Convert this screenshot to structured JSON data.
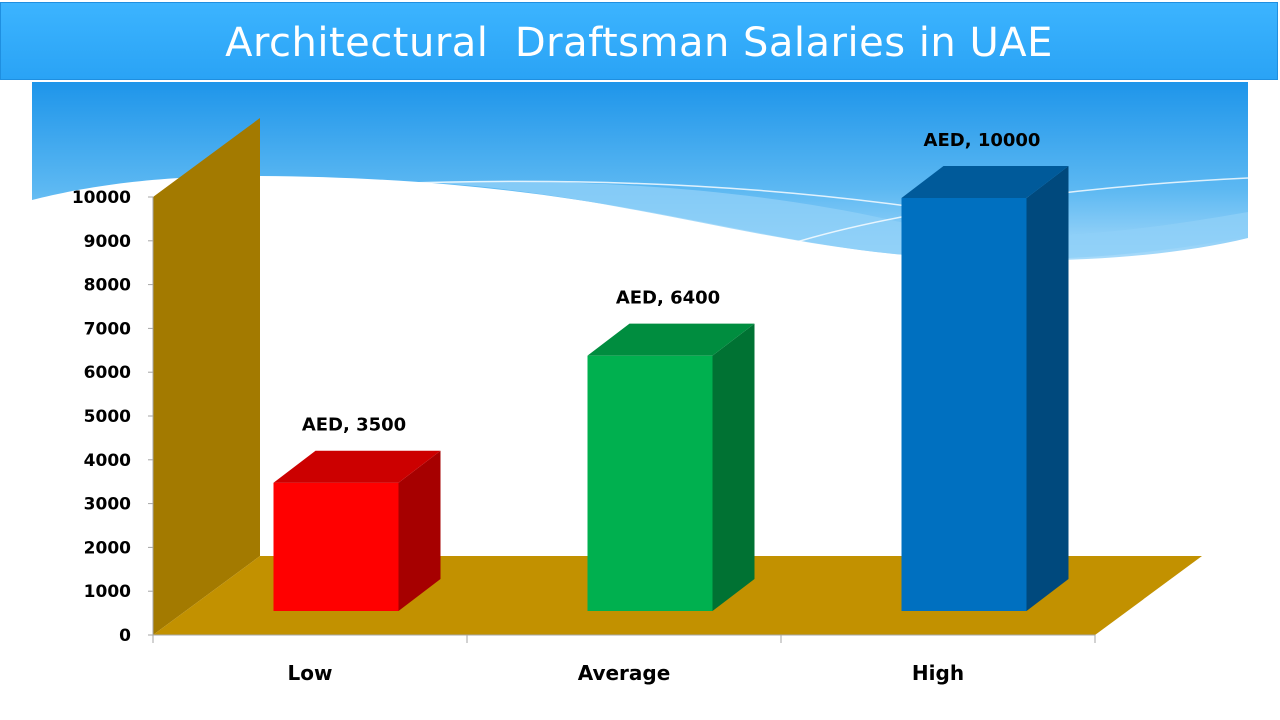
{
  "title": "Architectural  Draftsman Salaries in UAE",
  "colors": {
    "banner": "#33aaff",
    "wall": "#a37a00",
    "floor": "#c29100",
    "low": "#ff0000",
    "average": "#00b04f",
    "high": "#0070c0"
  },
  "chart_data": {
    "type": "bar",
    "title": "Architectural  Draftsman Salaries in UAE",
    "categories": [
      "Low",
      "Average",
      "High"
    ],
    "values": [
      3500,
      6400,
      10000
    ],
    "data_labels": [
      "AED, 3500",
      "AED, 6400",
      "AED, 10000"
    ],
    "ylim": [
      0,
      10000
    ],
    "yticks": [
      "0",
      "1000",
      "2000",
      "3000",
      "4000",
      "5000",
      "6000",
      "7000",
      "8000",
      "9000",
      "10000"
    ],
    "xlabel": "",
    "ylabel": "",
    "grid": false,
    "legend": "none",
    "style": "3d-column"
  }
}
